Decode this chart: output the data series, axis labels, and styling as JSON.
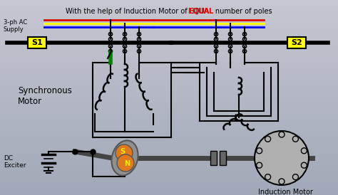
{
  "title_normal": "With the help of Induction Motor of ",
  "title_equal": "EQUAL",
  "title_end": " number of poles",
  "bg_color_top": "#b8b8c8",
  "bg_color_bot": "#888898",
  "s1_label": "S1",
  "s2_label": "S2",
  "label_sync": "Synchronous\nMotor",
  "label_dc": "DC\nExciter",
  "label_ind": "Induction Motor",
  "label_3ph": "3-ph AC\nSupply",
  "ac_line_colors": [
    "#dd0000",
    "#ffff00",
    "#0000ee"
  ],
  "figsize": [
    4.74,
    2.74
  ],
  "dpi": 100
}
